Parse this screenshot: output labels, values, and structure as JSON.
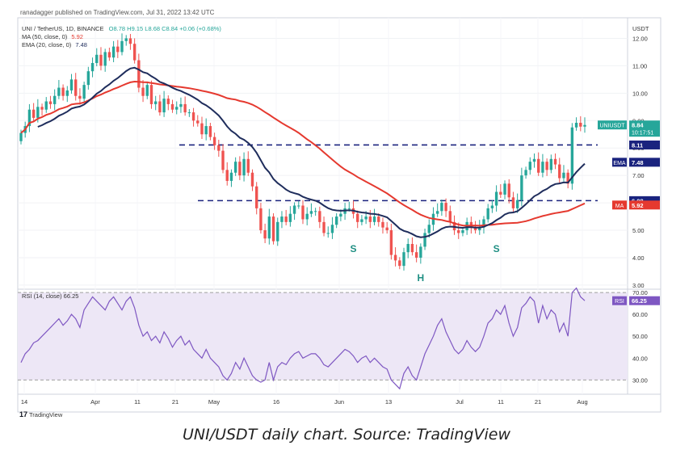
{
  "header": {
    "publisher": "ranadagger published on TradingView.com, Jul 31, 2022 13:42 UTC",
    "symbol_line": "UNI / TetherUS, 1D, BINANCE",
    "ohlc": "O8.78 H9.15 L8.68 C8.84 +0.06 (+0.68%)",
    "ma_line": "MA (50, close, 0)",
    "ma_value": "5.92",
    "ema_line": "EMA (20, close, 0)",
    "ema_value": "7.48"
  },
  "colors": {
    "up": "#26a69a",
    "down": "#ef5350",
    "ema": "#1f2d5c",
    "ma": "#e5392f",
    "rsi": "#7e57c2",
    "rsi_band": "#ede7f6",
    "level_line": "#1a237e"
  },
  "chart_data": [
    {
      "type": "candlestick",
      "title": "UNI / TetherUS, 1D, BINANCE",
      "y_axis_label": "USDT",
      "ylim": [
        2.85,
        12.75
      ],
      "y_ticks": [
        "12.00",
        "11.00",
        "10.00",
        "9.00",
        "8.00",
        "7.00",
        "6.00",
        "5.00",
        "4.00",
        "3.00"
      ],
      "x_ticks": [
        "14",
        "Apr",
        "11",
        "21",
        "May",
        "16",
        "Jun",
        "13",
        "Jul",
        "11",
        "21",
        "Aug"
      ],
      "closes": [
        8.55,
        8.8,
        9.4,
        9.1,
        9.5,
        9.4,
        9.7,
        9.6,
        9.9,
        10.2,
        9.9,
        10.1,
        10.5,
        9.9,
        9.8,
        10.3,
        10.8,
        11.1,
        11.4,
        11.0,
        11.5,
        11.3,
        11.7,
        11.5,
        11.9,
        12.0,
        11.8,
        11.2,
        10.2,
        9.9,
        10.3,
        9.6,
        9.7,
        9.3,
        9.8,
        9.6,
        9.4,
        9.5,
        9.6,
        9.3,
        9.3,
        9.0,
        8.9,
        8.5,
        8.8,
        8.4,
        8.1,
        7.9,
        7.2,
        6.8,
        7.1,
        7.5,
        7.0,
        7.6,
        7.1,
        6.6,
        5.8,
        5.0,
        4.7,
        5.5,
        4.6,
        5.3,
        5.5,
        5.3,
        5.6,
        5.9,
        5.9,
        5.4,
        5.6,
        5.7,
        5.7,
        5.3,
        4.9,
        4.9,
        5.2,
        5.5,
        5.6,
        5.8,
        5.8,
        5.6,
        5.3,
        5.4,
        5.5,
        5.3,
        5.5,
        5.3,
        5.1,
        5.0,
        4.1,
        3.9,
        3.7,
        4.2,
        4.5,
        4.2,
        4.0,
        4.4,
        4.9,
        5.2,
        5.6,
        5.7,
        6.0,
        5.7,
        5.3,
        5.0,
        4.9,
        5.0,
        5.3,
        5.1,
        5.0,
        5.1,
        5.4,
        5.8,
        5.9,
        6.4,
        6.3,
        6.7,
        6.2,
        5.8,
        6.1,
        7.0,
        7.2,
        7.5,
        7.6,
        7.1,
        7.5,
        7.2,
        7.6,
        7.4,
        6.9,
        7.1,
        6.7,
        8.75,
        8.92,
        8.78,
        8.84
      ],
      "price_labels": [
        {
          "name": "UNIUSDT",
          "value": "8.84",
          "timer": "10:17:51",
          "at": 8.84
        },
        {
          "name": "level-high",
          "value": "8.11",
          "at": 8.11
        },
        {
          "name": "EMA",
          "value": "7.48",
          "at": 7.48
        },
        {
          "name": "level-low",
          "value": "6.08",
          "at": 6.08
        },
        {
          "name": "MA",
          "value": "5.92",
          "at": 5.92
        }
      ],
      "horizontal_levels": [
        8.11,
        6.08
      ],
      "annotations": [
        {
          "text": "S",
          "x": 79,
          "y": 4.2
        },
        {
          "text": "H",
          "x": 95,
          "y": 3.15
        },
        {
          "text": "S",
          "x": 113,
          "y": 4.2
        }
      ]
    },
    {
      "type": "line",
      "title": "RSI (14, close) 66.25",
      "ylim": [
        23.5,
        71.5
      ],
      "y_ticks": [
        "70.00",
        "60.00",
        "50.00",
        "40.00",
        "30.00"
      ],
      "band": [
        30,
        70
      ],
      "value_label": {
        "name": "RSI",
        "value": "66.25"
      },
      "values": [
        38,
        42,
        44,
        47,
        48,
        50,
        52,
        54,
        56,
        58,
        55,
        57,
        60,
        58,
        54,
        62,
        65,
        68,
        66,
        64,
        62,
        66,
        68,
        65,
        62,
        66,
        68,
        63,
        55,
        50,
        52,
        48,
        50,
        47,
        52,
        49,
        45,
        48,
        50,
        46,
        48,
        44,
        42,
        40,
        44,
        40,
        38,
        36,
        32,
        30,
        33,
        38,
        35,
        40,
        36,
        32,
        30,
        29,
        30,
        38,
        30,
        36,
        38,
        37,
        40,
        42,
        43,
        40,
        41,
        42,
        42,
        40,
        37,
        36,
        38,
        40,
        42,
        44,
        43,
        41,
        38,
        40,
        41,
        38,
        40,
        38,
        36,
        35,
        30,
        28,
        26,
        33,
        36,
        32,
        30,
        36,
        42,
        46,
        50,
        55,
        58,
        52,
        48,
        44,
        42,
        44,
        48,
        45,
        43,
        45,
        50,
        56,
        58,
        62,
        60,
        64,
        56,
        50,
        54,
        63,
        65,
        68,
        66,
        56,
        64,
        58,
        62,
        60,
        52,
        56,
        50,
        70,
        72,
        68,
        66.25
      ]
    }
  ],
  "logo": "TradingView",
  "caption": "UNI/USDT daily chart. Source: TradingView"
}
